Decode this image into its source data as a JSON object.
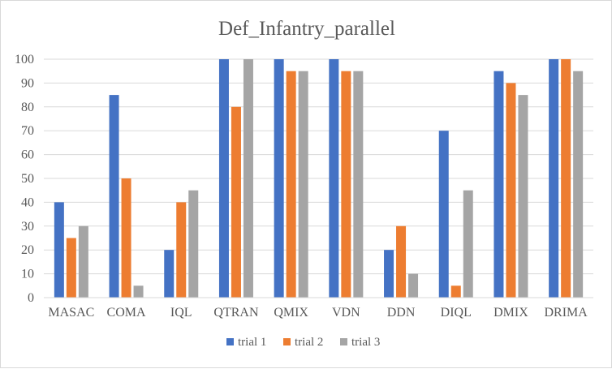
{
  "chart_data": {
    "type": "bar",
    "title": "Def_Infantry_parallel",
    "xlabel": "",
    "ylabel": "",
    "categories": [
      "MASAC",
      "COMA",
      "IQL",
      "QTRAN",
      "QMIX",
      "VDN",
      "DDN",
      "DIQL",
      "DMIX",
      "DRIMA"
    ],
    "series": [
      {
        "name": "trial 1",
        "color": "#4472c4",
        "values": [
          40,
          85,
          20,
          100,
          100,
          100,
          20,
          70,
          95,
          100
        ]
      },
      {
        "name": "trial 2",
        "color": "#ed7d31",
        "values": [
          25,
          50,
          40,
          80,
          95,
          95,
          30,
          5,
          90,
          100
        ]
      },
      {
        "name": "trial 3",
        "color": "#a5a5a5",
        "values": [
          30,
          5,
          45,
          100,
          95,
          95,
          10,
          45,
          85,
          95
        ]
      }
    ],
    "ylim": [
      0,
      100
    ],
    "yticks": [
      0,
      10,
      20,
      30,
      40,
      50,
      60,
      70,
      80,
      90,
      100
    ],
    "grid": true,
    "legend": "bottom"
  }
}
